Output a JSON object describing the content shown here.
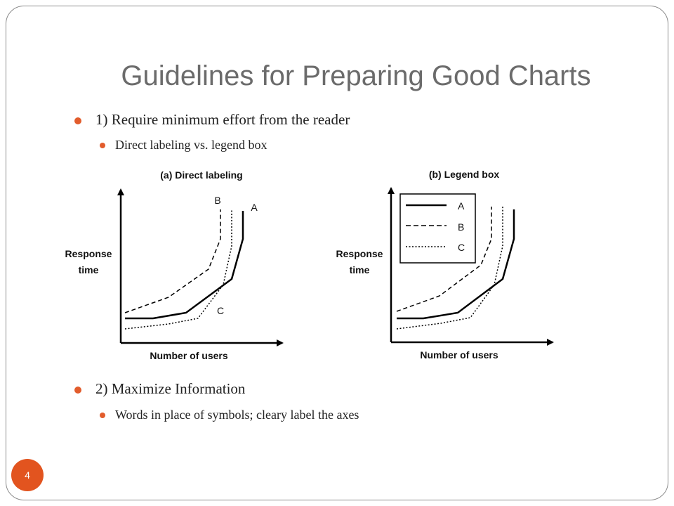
{
  "slide": {
    "title": "Guidelines for Preparing Good Charts",
    "bullets": [
      {
        "text": "1) Require minimum effort from the reader",
        "sub": "Direct labeling vs. legend box"
      },
      {
        "text": "2) Maximize Information",
        "sub": "Words in place of symbols; cleary label the axes"
      }
    ],
    "page_number": "4"
  },
  "colors": {
    "accent": "#e2541f",
    "title": "#6b6b6b",
    "border": "#8c8c8c"
  },
  "chart_data": [
    {
      "type": "line",
      "title": "(a) Direct labeling",
      "xlabel": "Number of users",
      "ylabel": "Response time",
      "series": [
        {
          "name": "A",
          "style": "solid"
        },
        {
          "name": "B",
          "style": "dashed"
        },
        {
          "name": "C",
          "style": "dotted"
        }
      ],
      "legend": "direct labels"
    },
    {
      "type": "line",
      "title": "(b) Legend box",
      "xlabel": "Number of users",
      "ylabel": "Response time",
      "series": [
        {
          "name": "A",
          "style": "solid"
        },
        {
          "name": "B",
          "style": "dashed"
        },
        {
          "name": "C",
          "style": "dotted"
        }
      ],
      "legend": "top-left box"
    }
  ]
}
